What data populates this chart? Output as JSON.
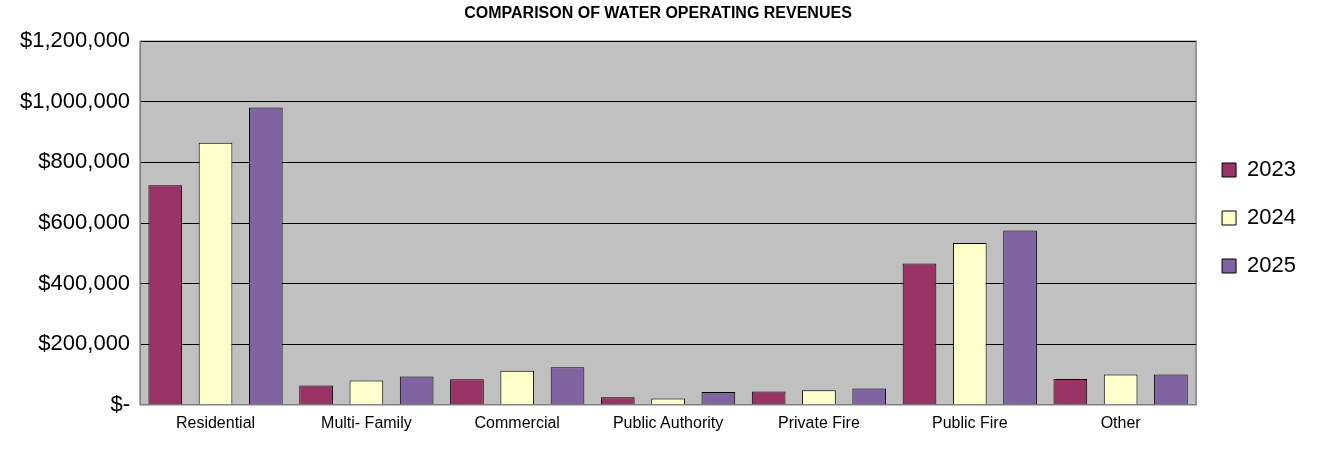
{
  "chart_data": {
    "type": "bar",
    "title": "COMPARISON OF WATER OPERATING REVENUES",
    "categories": [
      "Residential",
      "Multi- Family",
      "Commercial",
      "Public Authority",
      "Private Fire",
      "Public Fire",
      "Other"
    ],
    "series": [
      {
        "name": "2023",
        "color": "#993366",
        "values": [
          725000,
          64000,
          84000,
          25000,
          44000,
          466000,
          85000
        ]
      },
      {
        "name": "2024",
        "color": "#ffffcc",
        "values": [
          865000,
          80000,
          112000,
          21000,
          48000,
          534000,
          100000
        ]
      },
      {
        "name": "2025",
        "color": "#8064a2",
        "values": [
          981000,
          93000,
          124000,
          42000,
          54000,
          575000,
          100000
        ]
      }
    ],
    "ylim": [
      0,
      1200000
    ],
    "yticks": [
      {
        "value": 0,
        "label": "$-"
      },
      {
        "value": 200000,
        "label": "$200,000"
      },
      {
        "value": 400000,
        "label": "$400,000"
      },
      {
        "value": 600000,
        "label": "$600,000"
      },
      {
        "value": 800000,
        "label": "$800,000"
      },
      {
        "value": 1000000,
        "label": "$1,000,000"
      },
      {
        "value": 1200000,
        "label": "$1,200,000"
      }
    ],
    "grid": "y",
    "legend": "right"
  }
}
